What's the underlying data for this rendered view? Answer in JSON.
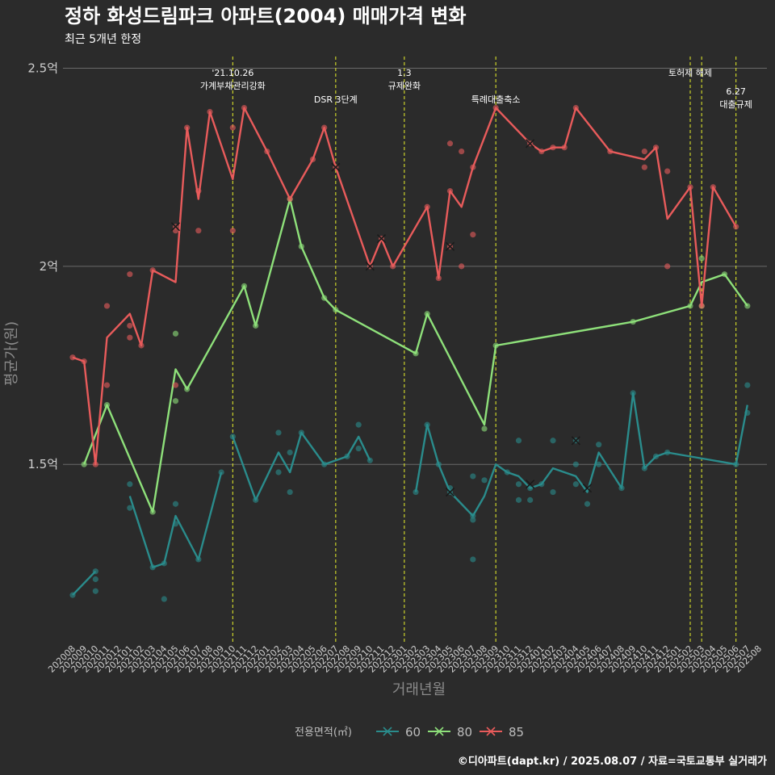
{
  "title": "정하 화성드림파크 아파트(2004) 매매가격 변화",
  "subtitle": "최근 5개년 한정",
  "caption": "©디아파트(dapt.kr) / 2025.08.07 / 자료=국토교통부 실거래가",
  "chart_data": {
    "type": "line",
    "xlabel": "거래년월",
    "ylabel": "평균가(원)",
    "ylim": [
      1.05,
      2.55
    ],
    "y_ticks": [
      {
        "value": 1.5,
        "label": "1.5억"
      },
      {
        "value": 2.0,
        "label": "2억"
      },
      {
        "value": 2.5,
        "label": "2.5억"
      }
    ],
    "x_start": "2020-08",
    "x_end": "2025-08",
    "legend": {
      "title": "전용면적(㎡)",
      "placement": "bottom",
      "entries": [
        "60",
        "80",
        "85"
      ]
    },
    "colors": {
      "60": "#2a8c8c",
      "80": "#8ee07a",
      "85": "#e85b5b",
      "event_line": "#d8e02a",
      "grid": "#6a6a6a",
      "background": "#2b2b2b"
    },
    "events": [
      {
        "x": "2021-10",
        "line1": "'21.10.26",
        "line2": "가계부채관리강화",
        "row": 1
      },
      {
        "x": "2022-07",
        "line1": "DSR 3단계",
        "line2": "",
        "row": 2
      },
      {
        "x": "2023-01",
        "line1": "1.3",
        "line2": "규제완화",
        "row": 1
      },
      {
        "x": "2023-09",
        "line1": "특례대출축소",
        "line2": "",
        "row": 2
      },
      {
        "x": "2025-02",
        "line1": "토허제 해제",
        "line2": "",
        "row": 1
      },
      {
        "x": "2025-03",
        "line1": "",
        "line2": "",
        "row": 1
      },
      {
        "x": "2025-06",
        "line1": "6.27",
        "line2": "대출규제",
        "row": 3
      }
    ],
    "series": [
      {
        "name": "60",
        "segments": [
          [
            [
              "2020-08",
              1.17
            ],
            [
              "2020-10",
              1.23
            ]
          ],
          [
            [
              "2021-01",
              1.42
            ],
            [
              "2021-03",
              1.24
            ],
            [
              "2021-04",
              1.25
            ],
            [
              "2021-05",
              1.37
            ],
            [
              "2021-07",
              1.26
            ],
            [
              "2021-09",
              1.48
            ]
          ],
          [
            [
              "2021-10",
              1.57
            ],
            [
              "2021-12",
              1.41
            ],
            [
              "2022-02",
              1.53
            ],
            [
              "2022-03",
              1.48
            ],
            [
              "2022-04",
              1.58
            ],
            [
              "2022-06",
              1.5
            ],
            [
              "2022-08",
              1.52
            ],
            [
              "2022-09",
              1.57
            ],
            [
              "2022-10",
              1.51
            ]
          ],
          [
            [
              "2023-02",
              1.43
            ],
            [
              "2023-03",
              1.6
            ],
            [
              "2023-04",
              1.5
            ],
            [
              "2023-05",
              1.43
            ],
            [
              "2023-07",
              1.37
            ],
            [
              "2023-08",
              1.42
            ],
            [
              "2023-09",
              1.5
            ],
            [
              "2023-10",
              1.48
            ],
            [
              "2023-11",
              1.47
            ],
            [
              "2023-12",
              1.44
            ],
            [
              "2024-01",
              1.45
            ],
            [
              "2024-02",
              1.49
            ],
            [
              "2024-04",
              1.47
            ],
            [
              "2024-05",
              1.43
            ],
            [
              "2024-06",
              1.53
            ],
            [
              "2024-08",
              1.44
            ],
            [
              "2024-09",
              1.68
            ],
            [
              "2024-10",
              1.49
            ],
            [
              "2024-11",
              1.52
            ],
            [
              "2024-12",
              1.53
            ],
            [
              "2025-06",
              1.5
            ],
            [
              "2025-07",
              1.65
            ]
          ]
        ],
        "points": [
          [
            "2020-08",
            1.17
          ],
          [
            "2020-10",
            1.23
          ],
          [
            "2020-10",
            1.21
          ],
          [
            "2020-10",
            1.18
          ],
          [
            "2021-01",
            1.45
          ],
          [
            "2021-01",
            1.39
          ],
          [
            "2021-03",
            1.24
          ],
          [
            "2021-04",
            1.25
          ],
          [
            "2021-04",
            1.16
          ],
          [
            "2021-05",
            1.4
          ],
          [
            "2021-05",
            1.35
          ],
          [
            "2021-07",
            1.26
          ],
          [
            "2021-09",
            1.48
          ],
          [
            "2021-10",
            1.57
          ],
          [
            "2021-12",
            1.41
          ],
          [
            "2022-02",
            1.58
          ],
          [
            "2022-02",
            1.48
          ],
          [
            "2022-03",
            1.53
          ],
          [
            "2022-03",
            1.43
          ],
          [
            "2022-04",
            1.58
          ],
          [
            "2022-06",
            1.5
          ],
          [
            "2022-08",
            1.52
          ],
          [
            "2022-09",
            1.6
          ],
          [
            "2022-09",
            1.54
          ],
          [
            "2022-10",
            1.51
          ],
          [
            "2023-02",
            1.43
          ],
          [
            "2023-03",
            1.6
          ],
          [
            "2023-04",
            1.5
          ],
          [
            "2023-05",
            1.44
          ],
          [
            "2023-05",
            1.43
          ],
          [
            "2023-07",
            1.36
          ],
          [
            "2023-07",
            1.37
          ],
          [
            "2023-07",
            1.47
          ],
          [
            "2023-07",
            1.26
          ],
          [
            "2023-08",
            1.46
          ],
          [
            "2023-10",
            1.48
          ],
          [
            "2023-11",
            1.56
          ],
          [
            "2023-11",
            1.41
          ],
          [
            "2023-11",
            1.45
          ],
          [
            "2023-12",
            1.41
          ],
          [
            "2023-12",
            1.44
          ],
          [
            "2024-01",
            1.45
          ],
          [
            "2024-02",
            1.56
          ],
          [
            "2024-02",
            1.43
          ],
          [
            "2024-04",
            1.56
          ],
          [
            "2024-04",
            1.5
          ],
          [
            "2024-04",
            1.45
          ],
          [
            "2024-05",
            1.4
          ],
          [
            "2024-06",
            1.55
          ],
          [
            "2024-06",
            1.5
          ],
          [
            "2024-08",
            1.44
          ],
          [
            "2024-09",
            1.68
          ],
          [
            "2024-10",
            1.49
          ],
          [
            "2024-11",
            1.52
          ],
          [
            "2024-12",
            1.53
          ],
          [
            "2025-06",
            1.5
          ],
          [
            "2025-07",
            1.7
          ],
          [
            "2025-07",
            1.63
          ]
        ],
        "cross_points": [
          [
            "2023-05",
            1.43
          ],
          [
            "2023-12",
            1.45
          ],
          [
            "2024-04",
            1.56
          ],
          [
            "2024-05",
            1.44
          ]
        ]
      },
      {
        "name": "80",
        "segments": [
          [
            [
              "2020-09",
              1.5
            ],
            [
              "2020-11",
              1.65
            ],
            [
              "2021-03",
              1.38
            ],
            [
              "2021-05",
              1.74
            ],
            [
              "2021-06",
              1.69
            ],
            [
              "2021-11",
              1.95
            ],
            [
              "2021-12",
              1.85
            ],
            [
              "2022-03",
              2.17
            ],
            [
              "2022-04",
              2.05
            ],
            [
              "2022-06",
              1.92
            ],
            [
              "2022-07",
              1.89
            ],
            [
              "2023-02",
              1.78
            ],
            [
              "2023-03",
              1.88
            ],
            [
              "2023-08",
              1.6
            ],
            [
              "2023-09",
              1.8
            ],
            [
              "2024-09",
              1.86
            ],
            [
              "2025-02",
              1.9
            ],
            [
              "2025-03",
              1.96
            ],
            [
              "2025-05",
              1.98
            ],
            [
              "2025-07",
              1.9
            ]
          ]
        ],
        "points": [
          [
            "2020-09",
            1.5
          ],
          [
            "2020-11",
            1.65
          ],
          [
            "2021-03",
            1.38
          ],
          [
            "2021-05",
            1.83
          ],
          [
            "2021-05",
            1.66
          ],
          [
            "2021-06",
            1.69
          ],
          [
            "2021-11",
            1.95
          ],
          [
            "2021-12",
            1.85
          ],
          [
            "2022-03",
            2.17
          ],
          [
            "2022-04",
            2.05
          ],
          [
            "2022-06",
            1.92
          ],
          [
            "2022-07",
            1.89
          ],
          [
            "2023-02",
            1.78
          ],
          [
            "2023-03",
            1.88
          ],
          [
            "2023-08",
            1.59
          ],
          [
            "2023-09",
            1.8
          ],
          [
            "2024-09",
            1.86
          ],
          [
            "2025-02",
            1.9
          ],
          [
            "2025-03",
            2.02
          ],
          [
            "2025-03",
            1.9
          ],
          [
            "2025-05",
            1.98
          ],
          [
            "2025-07",
            1.9
          ]
        ],
        "cross_points": []
      },
      {
        "name": "85",
        "segments": [
          [
            [
              "2020-08",
              1.77
            ],
            [
              "2020-09",
              1.76
            ],
            [
              "2020-10",
              1.5
            ],
            [
              "2020-11",
              1.82
            ],
            [
              "2021-01",
              1.88
            ],
            [
              "2021-02",
              1.8
            ],
            [
              "2021-03",
              1.99
            ],
            [
              "2021-05",
              1.96
            ],
            [
              "2021-06",
              2.35
            ],
            [
              "2021-07",
              2.17
            ],
            [
              "2021-08",
              2.39
            ],
            [
              "2021-10",
              2.22
            ],
            [
              "2021-11",
              2.4
            ],
            [
              "2022-01",
              2.29
            ],
            [
              "2022-03",
              2.17
            ],
            [
              "2022-05",
              2.27
            ],
            [
              "2022-06",
              2.35
            ],
            [
              "2022-07",
              2.25
            ],
            [
              "2022-10",
              2.0
            ],
            [
              "2022-11",
              2.07
            ],
            [
              "2022-12",
              2.0
            ],
            [
              "2023-03",
              2.15
            ],
            [
              "2023-04",
              1.97
            ],
            [
              "2023-05",
              2.19
            ],
            [
              "2023-06",
              2.15
            ],
            [
              "2023-07",
              2.25
            ],
            [
              "2023-09",
              2.4
            ],
            [
              "2023-12",
              2.31
            ],
            [
              "2024-01",
              2.29
            ],
            [
              "2024-02",
              2.3
            ],
            [
              "2024-03",
              2.3
            ],
            [
              "2024-04",
              2.4
            ],
            [
              "2024-07",
              2.29
            ],
            [
              "2024-10",
              2.27
            ],
            [
              "2024-11",
              2.3
            ],
            [
              "2024-12",
              2.12
            ],
            [
              "2025-02",
              2.2
            ],
            [
              "2025-03",
              1.9
            ],
            [
              "2025-04",
              2.2
            ],
            [
              "2025-06",
              2.1
            ]
          ]
        ],
        "points": [
          [
            "2020-08",
            1.77
          ],
          [
            "2020-09",
            1.76
          ],
          [
            "2020-10",
            1.5
          ],
          [
            "2020-11",
            1.9
          ],
          [
            "2020-11",
            1.7
          ],
          [
            "2021-01",
            1.98
          ],
          [
            "2021-01",
            1.85
          ],
          [
            "2021-01",
            1.82
          ],
          [
            "2021-02",
            1.8
          ],
          [
            "2021-03",
            1.99
          ],
          [
            "2021-05",
            2.1
          ],
          [
            "2021-05",
            2.09
          ],
          [
            "2021-05",
            1.7
          ],
          [
            "2021-06",
            2.35
          ],
          [
            "2021-07",
            2.19
          ],
          [
            "2021-07",
            2.09
          ],
          [
            "2021-08",
            2.39
          ],
          [
            "2021-10",
            2.35
          ],
          [
            "2021-10",
            2.09
          ],
          [
            "2021-11",
            2.4
          ],
          [
            "2022-01",
            2.29
          ],
          [
            "2022-03",
            2.17
          ],
          [
            "2022-05",
            2.27
          ],
          [
            "2022-06",
            2.35
          ],
          [
            "2022-07",
            2.25
          ],
          [
            "2022-10",
            2.0
          ],
          [
            "2022-11",
            2.07
          ],
          [
            "2022-12",
            2.0
          ],
          [
            "2023-03",
            2.15
          ],
          [
            "2023-04",
            1.97
          ],
          [
            "2023-05",
            2.31
          ],
          [
            "2023-05",
            2.19
          ],
          [
            "2023-05",
            2.05
          ],
          [
            "2023-06",
            2.29
          ],
          [
            "2023-06",
            2.0
          ],
          [
            "2023-07",
            2.25
          ],
          [
            "2023-07",
            2.08
          ],
          [
            "2023-09",
            2.4
          ],
          [
            "2023-12",
            2.31
          ],
          [
            "2024-01",
            2.29
          ],
          [
            "2024-02",
            2.3
          ],
          [
            "2024-03",
            2.3
          ],
          [
            "2024-04",
            2.4
          ],
          [
            "2024-07",
            2.29
          ],
          [
            "2024-10",
            2.29
          ],
          [
            "2024-10",
            2.25
          ],
          [
            "2024-11",
            2.3
          ],
          [
            "2024-12",
            2.24
          ],
          [
            "2024-12",
            2.0
          ],
          [
            "2025-02",
            2.2
          ],
          [
            "2025-03",
            1.9
          ],
          [
            "2025-04",
            2.2
          ],
          [
            "2025-06",
            2.1
          ]
        ],
        "cross_points": [
          [
            "2021-05",
            2.1
          ],
          [
            "2022-07",
            2.25
          ],
          [
            "2022-10",
            2.0
          ],
          [
            "2022-11",
            2.07
          ],
          [
            "2023-05",
            2.05
          ],
          [
            "2023-12",
            2.31
          ]
        ]
      }
    ]
  }
}
